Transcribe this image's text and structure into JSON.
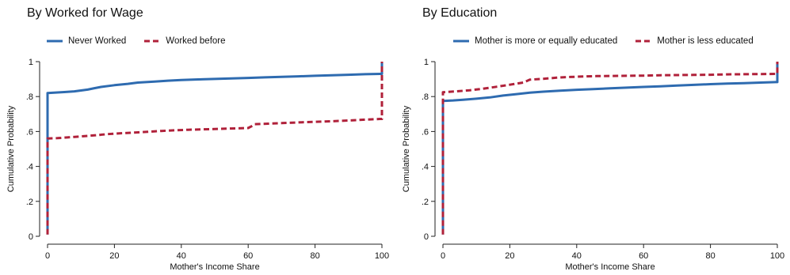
{
  "chart_data": [
    {
      "type": "line",
      "title": "By Worked for Wage",
      "xlabel": "Mother's Income Share",
      "ylabel": "Cumulative Probability",
      "xlim": [
        0,
        100
      ],
      "ylim": [
        0,
        1
      ],
      "xticks": [
        "0",
        "20",
        "40",
        "60",
        "80",
        "100"
      ],
      "yticks": [
        "0",
        ".2",
        ".4",
        ".6",
        ".8",
        "1"
      ],
      "xtick_values": [
        0,
        20,
        40,
        60,
        80,
        100
      ],
      "ytick_values": [
        0,
        0.2,
        0.4,
        0.6,
        0.8,
        1
      ],
      "grid": false,
      "legend_position": "top",
      "series": [
        {
          "name": "Never Worked",
          "color": "#2e6bb0",
          "style": "solid",
          "points": [
            [
              0,
              0.01
            ],
            [
              0,
              0.82
            ],
            [
              2,
              0.822
            ],
            [
              5,
              0.826
            ],
            [
              8,
              0.83
            ],
            [
              10,
              0.835
            ],
            [
              12,
              0.84
            ],
            [
              14,
              0.848
            ],
            [
              16,
              0.855
            ],
            [
              20,
              0.865
            ],
            [
              24,
              0.873
            ],
            [
              27,
              0.88
            ],
            [
              32,
              0.886
            ],
            [
              36,
              0.891
            ],
            [
              40,
              0.895
            ],
            [
              45,
              0.898
            ],
            [
              50,
              0.901
            ],
            [
              55,
              0.904
            ],
            [
              60,
              0.907
            ],
            [
              65,
              0.91
            ],
            [
              70,
              0.913
            ],
            [
              75,
              0.916
            ],
            [
              80,
              0.919
            ],
            [
              85,
              0.922
            ],
            [
              90,
              0.925
            ],
            [
              95,
              0.928
            ],
            [
              99.5,
              0.93
            ],
            [
              100,
              0.93
            ],
            [
              100,
              1.0
            ]
          ]
        },
        {
          "name": "Worked before",
          "color": "#b0213a",
          "style": "dashed",
          "points": [
            [
              0,
              0.01
            ],
            [
              0,
              0.56
            ],
            [
              3,
              0.562
            ],
            [
              6,
              0.566
            ],
            [
              10,
              0.572
            ],
            [
              14,
              0.578
            ],
            [
              18,
              0.585
            ],
            [
              22,
              0.59
            ],
            [
              26,
              0.594
            ],
            [
              30,
              0.598
            ],
            [
              34,
              0.603
            ],
            [
              38,
              0.607
            ],
            [
              42,
              0.61
            ],
            [
              46,
              0.612
            ],
            [
              50,
              0.614
            ],
            [
              55,
              0.617
            ],
            [
              60,
              0.62
            ],
            [
              61,
              0.63
            ],
            [
              62,
              0.642
            ],
            [
              66,
              0.645
            ],
            [
              70,
              0.648
            ],
            [
              75,
              0.652
            ],
            [
              80,
              0.655
            ],
            [
              85,
              0.659
            ],
            [
              90,
              0.663
            ],
            [
              95,
              0.668
            ],
            [
              99.5,
              0.672
            ],
            [
              100,
              0.672
            ],
            [
              100,
              1.0
            ]
          ]
        }
      ]
    },
    {
      "type": "line",
      "title": "By Education",
      "xlabel": "Mother's Income Share",
      "ylabel": "Cumulative Probability",
      "xlim": [
        0,
        100
      ],
      "ylim": [
        0,
        1
      ],
      "xticks": [
        "0",
        "20",
        "40",
        "60",
        "80",
        "100"
      ],
      "yticks": [
        "0",
        ".2",
        ".4",
        ".6",
        ".8",
        "1"
      ],
      "xtick_values": [
        0,
        20,
        40,
        60,
        80,
        100
      ],
      "ytick_values": [
        0,
        0.2,
        0.4,
        0.6,
        0.8,
        1
      ],
      "grid": false,
      "legend_position": "top",
      "series": [
        {
          "name": "Mother is more or equally educated",
          "color": "#2e6bb0",
          "style": "solid",
          "points": [
            [
              0,
              0.01
            ],
            [
              0,
              0.775
            ],
            [
              3,
              0.778
            ],
            [
              6,
              0.782
            ],
            [
              10,
              0.788
            ],
            [
              14,
              0.795
            ],
            [
              18,
              0.806
            ],
            [
              22,
              0.814
            ],
            [
              26,
              0.822
            ],
            [
              30,
              0.828
            ],
            [
              35,
              0.834
            ],
            [
              40,
              0.839
            ],
            [
              45,
              0.843
            ],
            [
              50,
              0.847
            ],
            [
              55,
              0.851
            ],
            [
              60,
              0.855
            ],
            [
              65,
              0.859
            ],
            [
              70,
              0.863
            ],
            [
              75,
              0.867
            ],
            [
              80,
              0.871
            ],
            [
              85,
              0.874
            ],
            [
              90,
              0.877
            ],
            [
              95,
              0.88
            ],
            [
              99.5,
              0.883
            ],
            [
              100,
              0.883
            ],
            [
              100,
              1.0
            ]
          ]
        },
        {
          "name": "Mother is less educated",
          "color": "#b0213a",
          "style": "dashed",
          "points": [
            [
              0,
              0.01
            ],
            [
              0,
              0.825
            ],
            [
              4,
              0.83
            ],
            [
              8,
              0.836
            ],
            [
              12,
              0.845
            ],
            [
              16,
              0.856
            ],
            [
              20,
              0.868
            ],
            [
              24,
              0.88
            ],
            [
              26,
              0.897
            ],
            [
              30,
              0.902
            ],
            [
              34,
              0.908
            ],
            [
              38,
              0.912
            ],
            [
              42,
              0.915
            ],
            [
              46,
              0.917
            ],
            [
              50,
              0.918
            ],
            [
              55,
              0.919
            ],
            [
              60,
              0.92
            ],
            [
              65,
              0.922
            ],
            [
              70,
              0.923
            ],
            [
              75,
              0.924
            ],
            [
              80,
              0.925
            ],
            [
              85,
              0.927
            ],
            [
              90,
              0.928
            ],
            [
              95,
              0.929
            ],
            [
              99.5,
              0.93
            ],
            [
              100,
              0.93
            ],
            [
              100,
              1.0
            ]
          ]
        }
      ]
    }
  ]
}
